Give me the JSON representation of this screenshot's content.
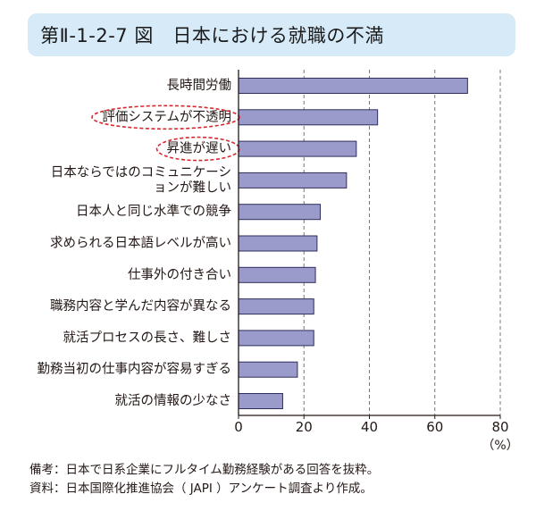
{
  "header": {
    "title": "第Ⅱ-1-2-7 図　日本における就職の不満"
  },
  "chart_data": {
    "type": "bar",
    "orientation": "horizontal",
    "categories": [
      "長時間労働",
      "評価システムが不透明",
      "昇進が遅い",
      "日本ならではのコミュニケーションが難しい",
      "日本人と同じ水準での競争",
      "求められる日本語レベルが高い",
      "仕事外の付き合い",
      "職務内容と学んだ内容が異なる",
      "就活プロセスの長さ、難しさ",
      "勤務当初の仕事内容が容易すぎる",
      "就活の情報の少なさ"
    ],
    "category_lines": [
      [
        "長時間労働"
      ],
      [
        "評価システムが不透明"
      ],
      [
        "昇進が遅い"
      ],
      [
        "日本ならではのコミュニケーシ",
        "ョンが難しい"
      ],
      [
        "日本人と同じ水準での競争"
      ],
      [
        "求められる日本語レベルが高い"
      ],
      [
        "仕事外の付き合い"
      ],
      [
        "職務内容と学んだ内容が異なる"
      ],
      [
        "就活プロセスの長さ、難しさ"
      ],
      [
        "勤務当初の仕事内容が容易すぎる"
      ],
      [
        "就活の情報の少なさ"
      ]
    ],
    "values": [
      70,
      42.5,
      36,
      33,
      25,
      24,
      23.5,
      23,
      23,
      18,
      13.5
    ],
    "highlighted": [
      "評価システムが不透明",
      "昇進が遅い"
    ],
    "xlim": [
      0,
      80
    ],
    "xticks": [
      0,
      20,
      40,
      60,
      80
    ],
    "xunit": "（%）",
    "grid": "vertical-dashed",
    "bar_color": "#9a9bcb",
    "bar_edge_color": "#2e2e5c",
    "highlight_color": "#d9272e"
  },
  "notes": {
    "remark": "備考：日本で日系企業にフルタイム勤務経験がある回答を抜粋。",
    "source": "資料：日本国際化推進協会（ JAPI ）アンケート調査より作成。"
  }
}
